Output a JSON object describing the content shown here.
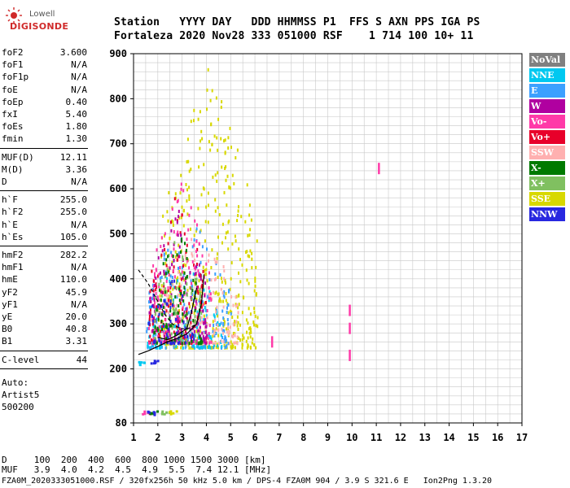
{
  "logo": {
    "line1": "Lowell",
    "line2": "DIGISONDE"
  },
  "header": {
    "line1": "Station   YYYY DAY   DDD HHMMSS P1  FFS S AXN PPS IGA PS",
    "line2": "Fortaleza 2020 Nov28 333 051000 RSF    1 714 100 10+ 11"
  },
  "params": {
    "group1": [
      {
        "name": "foF2",
        "value": "3.600"
      },
      {
        "name": "foF1",
        "value": "N/A"
      },
      {
        "name": "foF1p",
        "value": "N/A"
      },
      {
        "name": "foE",
        "value": "N/A"
      },
      {
        "name": "foEp",
        "value": "0.40"
      },
      {
        "name": "fxI",
        "value": "5.40"
      },
      {
        "name": "foEs",
        "value": "1.80"
      },
      {
        "name": "fmin",
        "value": "1.30"
      }
    ],
    "group2": [
      {
        "name": "MUF(D)",
        "value": "12.11"
      },
      {
        "name": "M(D)",
        "value": "3.36"
      },
      {
        "name": "D",
        "value": "N/A"
      }
    ],
    "group3": [
      {
        "name": "h`F",
        "value": "255.0"
      },
      {
        "name": "h`F2",
        "value": "255.0"
      },
      {
        "name": "h`E",
        "value": "N/A"
      },
      {
        "name": "h`Es",
        "value": "105.0"
      }
    ],
    "group4": [
      {
        "name": "hmF2",
        "value": "282.2"
      },
      {
        "name": "hmF1",
        "value": "N/A"
      },
      {
        "name": "hmE",
        "value": "110.0"
      },
      {
        "name": "yF2",
        "value": "45.9"
      },
      {
        "name": "yF1",
        "value": "N/A"
      },
      {
        "name": "yE",
        "value": "20.0"
      },
      {
        "name": "B0",
        "value": "40.8"
      },
      {
        "name": "B1",
        "value": "3.31"
      }
    ],
    "group5": [
      {
        "name": "C-level",
        "value": "44"
      }
    ],
    "auto_label": "Auto:",
    "artist": "Artist5",
    "artist_version": "500200"
  },
  "legend": [
    {
      "label": "NoVal",
      "bg": "#808080",
      "fg": "#ffffff"
    },
    {
      "label": "NNE",
      "bg": "#00c8f0",
      "fg": "#ffffff"
    },
    {
      "label": "E",
      "bg": "#3ca0ff",
      "fg": "#ffffff"
    },
    {
      "label": "W",
      "bg": "#b000a0",
      "fg": "#ffffff"
    },
    {
      "label": "Vo-",
      "bg": "#ff3aa8",
      "fg": "#ffffff"
    },
    {
      "label": "Vo+",
      "bg": "#e8002a",
      "fg": "#ffffff"
    },
    {
      "label": "SSW",
      "bg": "#ffb0b0",
      "fg": "#ffffff"
    },
    {
      "label": "X-",
      "bg": "#007a00",
      "fg": "#ffffff"
    },
    {
      "label": "X+",
      "bg": "#80c060",
      "fg": "#ffffff"
    },
    {
      "label": "SSE",
      "bg": "#d8d800",
      "fg": "#ffffff"
    },
    {
      "label": "NNW",
      "bg": "#2828e0",
      "fg": "#ffffff"
    }
  ],
  "chart_data": {
    "type": "scatter",
    "title": "",
    "xlabel": "",
    "ylabel": "",
    "xlim": [
      1,
      17
    ],
    "ylim": [
      80,
      900
    ],
    "x_ticks": [
      1,
      2,
      3,
      4,
      5,
      6,
      7,
      8,
      9,
      10,
      11,
      12,
      13,
      14,
      15,
      16,
      17
    ],
    "y_ticks": [
      80,
      200,
      300,
      400,
      500,
      600,
      700,
      800,
      900
    ],
    "grid": true,
    "legend_position": "right",
    "echo_regions": [
      {
        "series": "SSE",
        "x_range": [
          2.0,
          6.1
        ],
        "y_range": [
          250,
          880
        ]
      },
      {
        "series": "E",
        "x_range": [
          1.5,
          5.0
        ],
        "y_range": [
          250,
          560
        ]
      },
      {
        "series": "NNE",
        "x_range": [
          1.5,
          4.6
        ],
        "y_range": [
          250,
          450
        ]
      },
      {
        "series": "SSW",
        "x_range": [
          1.8,
          5.3
        ],
        "y_range": [
          260,
          520
        ]
      },
      {
        "series": "Vo+",
        "x_range": [
          1.6,
          4.0
        ],
        "y_range": [
          260,
          600
        ]
      },
      {
        "series": "Vo-",
        "x_range": [
          1.6,
          4.2
        ],
        "y_range": [
          260,
          620
        ]
      },
      {
        "series": "W",
        "x_range": [
          1.6,
          4.0
        ],
        "y_range": [
          260,
          560
        ]
      },
      {
        "series": "X+",
        "x_range": [
          1.8,
          3.8
        ],
        "y_range": [
          260,
          520
        ]
      },
      {
        "series": "X-",
        "x_range": [
          1.8,
          3.8
        ],
        "y_range": [
          260,
          520
        ]
      },
      {
        "series": "NNW",
        "x_range": [
          1.4,
          3.5
        ],
        "y_range": [
          260,
          420
        ]
      }
    ],
    "sporadic_echoes": [
      {
        "series": "Vo-",
        "x": 1.5,
        "y": 105
      },
      {
        "series": "X-",
        "x": 1.8,
        "y": 106
      },
      {
        "series": "X+",
        "x": 2.3,
        "y": 105
      },
      {
        "series": "SSE",
        "x": 2.6,
        "y": 105
      },
      {
        "series": "NNW",
        "x": 1.7,
        "y": 104
      },
      {
        "series": "NNE",
        "x": 1.3,
        "y": 215
      },
      {
        "series": "NNW",
        "x": 1.8,
        "y": 218
      }
    ],
    "isolated_echoes": [
      {
        "series": "Vo-",
        "x": 6.7,
        "y": 260
      },
      {
        "series": "Vo-",
        "x": 9.9,
        "y": 330
      },
      {
        "series": "Vo-",
        "x": 9.9,
        "y": 290
      },
      {
        "series": "Vo-",
        "x": 9.9,
        "y": 230
      },
      {
        "series": "Vo-",
        "x": 11.1,
        "y": 645
      }
    ],
    "profile_curves": [
      {
        "name": "o-trace",
        "points": [
          [
            1.2,
            232
          ],
          [
            1.6,
            240
          ],
          [
            2.0,
            250
          ],
          [
            2.4,
            260
          ],
          [
            2.8,
            268
          ],
          [
            3.2,
            278
          ],
          [
            3.6,
            300
          ],
          [
            3.8,
            345
          ],
          [
            3.9,
            410
          ]
        ]
      },
      {
        "name": "x-trace",
        "points": [
          [
            2.0,
            270
          ],
          [
            2.4,
            265
          ],
          [
            2.8,
            275
          ],
          [
            3.2,
            290
          ],
          [
            3.4,
            330
          ],
          [
            3.6,
            380
          ]
        ]
      },
      {
        "name": "profile",
        "points": [
          [
            1.2,
            420
          ],
          [
            1.6,
            390
          ],
          [
            2.0,
            350
          ],
          [
            2.3,
            320
          ],
          [
            2.6,
            300
          ],
          [
            2.9,
            290
          ],
          [
            3.2,
            288
          ],
          [
            3.6,
            300
          ]
        ]
      }
    ]
  },
  "footer": {
    "d_line": "D     100  200  400  600  800 1000 1500 3000 [km]",
    "muf_line": "MUF   3.9  4.0  4.2  4.5  4.9  5.5  7.4 12.1 [MHz]",
    "file_line": "FZA0M_2020333051000.RSF / 320fx256h 50 kHz 5.0 km / DPS-4 FZA0M 904 / 3.9 S 321.6 E   Ion2Png 1.3.20"
  }
}
